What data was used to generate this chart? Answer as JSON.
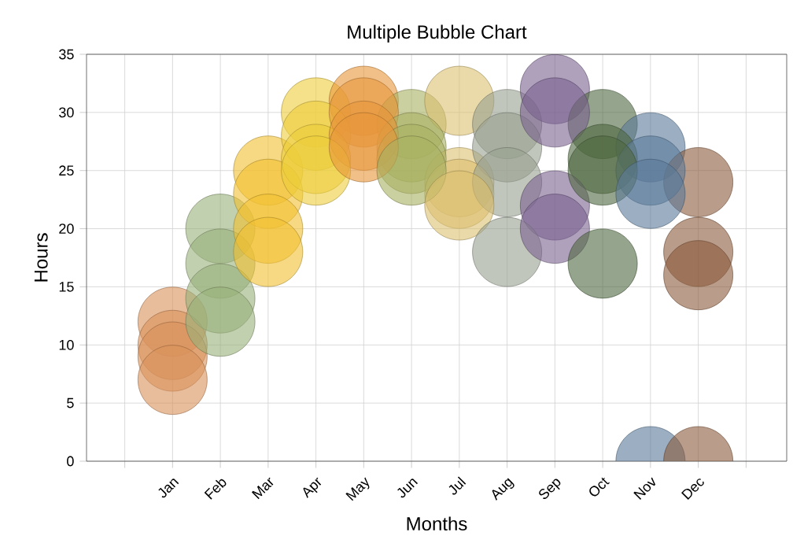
{
  "chart_data": {
    "type": "bubble",
    "title": "Multiple Bubble Chart",
    "xlabel": "Months",
    "ylabel": "Hours",
    "categories": [
      "Jan",
      "Feb",
      "Mar",
      "Apr",
      "May",
      "Jun",
      "Jul",
      "Aug",
      "Sep",
      "Oct",
      "Nov",
      "Dec"
    ],
    "ylim": [
      0,
      35
    ],
    "yticks": [
      0,
      5,
      10,
      15,
      20,
      25,
      30,
      35
    ],
    "grid": true,
    "marker": "circle",
    "series": [
      {
        "colors": [
          "#d9915a",
          "#98b07a",
          "#f2c030",
          "#edcd3a",
          "#e8963a",
          "#a8b060",
          "#dcc070",
          "#98a090",
          "#7a6090",
          "#4e6840",
          "#5a7a9a",
          "#8a5a3a"
        ],
        "values": [
          12,
          20,
          25,
          30,
          31,
          29,
          31,
          29,
          32,
          29,
          27,
          24
        ],
        "sizes": [
          1,
          1,
          1,
          1,
          1,
          1,
          1,
          1,
          1,
          1,
          1,
          1
        ]
      },
      {
        "colors": [
          "#d9915a",
          "#98b07a",
          "#f2c030",
          "#edcd3a",
          "#e8963a",
          "#a8b060",
          "#dcc070",
          "#98a090",
          "#7a6090",
          "#4e6840",
          "#5a7a9a",
          "#8a5a3a"
        ],
        "values": [
          10,
          17,
          23,
          28,
          30,
          27,
          24,
          27,
          30,
          26,
          25,
          18
        ],
        "sizes": [
          1,
          1,
          1,
          1,
          1,
          1,
          1,
          1,
          1,
          1,
          1,
          1
        ]
      },
      {
        "colors": [
          "#d9915a",
          "#98b07a",
          "#f2c030",
          "#edcd3a",
          "#e8963a",
          "#a8b060",
          "#dcc070",
          "#98a090",
          "#7a6090",
          "#4e6840",
          "#5a7a9a",
          "#8a5a3a"
        ],
        "values": [
          9,
          14,
          20,
          26,
          28,
          26,
          23,
          24,
          22,
          25,
          23,
          16
        ],
        "sizes": [
          1,
          1,
          1,
          1,
          1,
          1,
          1,
          1,
          1,
          1,
          1,
          1
        ]
      },
      {
        "colors": [
          "#d9915a",
          "#98b07a",
          "#f2c030",
          "#edcd3a",
          "#e8963a",
          "#a8b060",
          "#dcc070",
          "#98a090",
          "#7a6090",
          "#4e6840",
          "#5a7a9a",
          "#8a5a3a"
        ],
        "values": [
          7,
          12,
          18,
          25,
          27,
          25,
          22,
          18,
          20,
          17,
          0,
          0
        ],
        "sizes": [
          1,
          1,
          1,
          1,
          1,
          1,
          1,
          1,
          1,
          1,
          1,
          1
        ]
      }
    ]
  }
}
